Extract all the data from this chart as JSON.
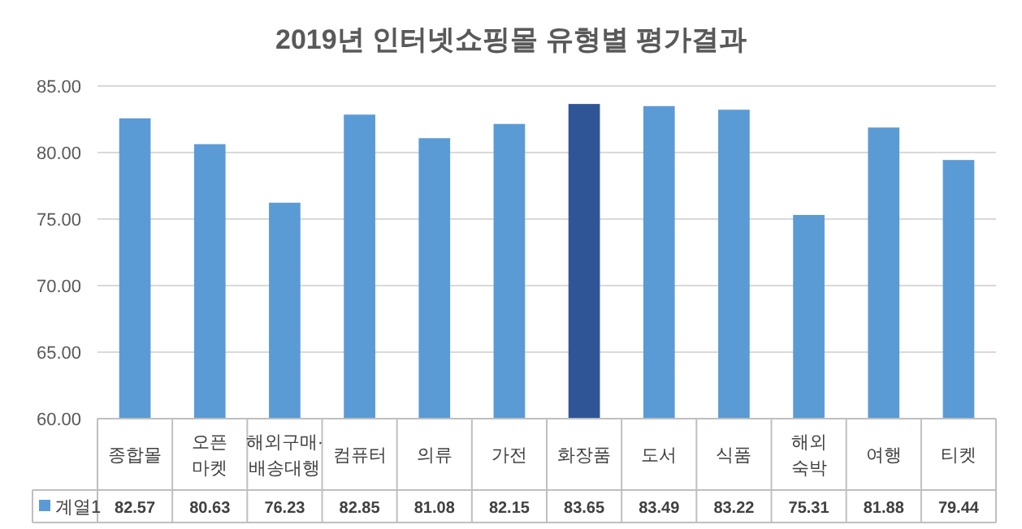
{
  "chart_data": {
    "type": "bar",
    "title": "2019년 인터넷쇼핑몰 유형별 평가결과",
    "categories": [
      "종합몰",
      "오픈\n마켓",
      "해외구매·\n배송대행",
      "컴퓨터",
      "의류",
      "가전",
      "화장품",
      "도서",
      "식품",
      "해외\n숙박",
      "여행",
      "티켓"
    ],
    "series": [
      {
        "name": "계열1",
        "color": "#5b9bd5",
        "values": [
          82.57,
          80.63,
          76.23,
          82.85,
          81.08,
          82.15,
          83.65,
          83.49,
          83.22,
          75.31,
          81.88,
          79.44
        ],
        "colors": [
          "#5b9bd5",
          "#5b9bd5",
          "#5b9bd5",
          "#5b9bd5",
          "#5b9bd5",
          "#5b9bd5",
          "#2f5597",
          "#5b9bd5",
          "#5b9bd5",
          "#5b9bd5",
          "#5b9bd5",
          "#5b9bd5"
        ]
      }
    ],
    "ylim": [
      60,
      85
    ],
    "yticks": [
      {
        "value": 60,
        "label": "60.00"
      },
      {
        "value": 65,
        "label": "65.00"
      },
      {
        "value": 70,
        "label": "70.00"
      },
      {
        "value": 75,
        "label": "75.00"
      },
      {
        "value": 80,
        "label": "80.00"
      },
      {
        "value": 85,
        "label": "85.00"
      }
    ],
    "grid": "y",
    "data_labels": true,
    "legend": "bottom"
  }
}
